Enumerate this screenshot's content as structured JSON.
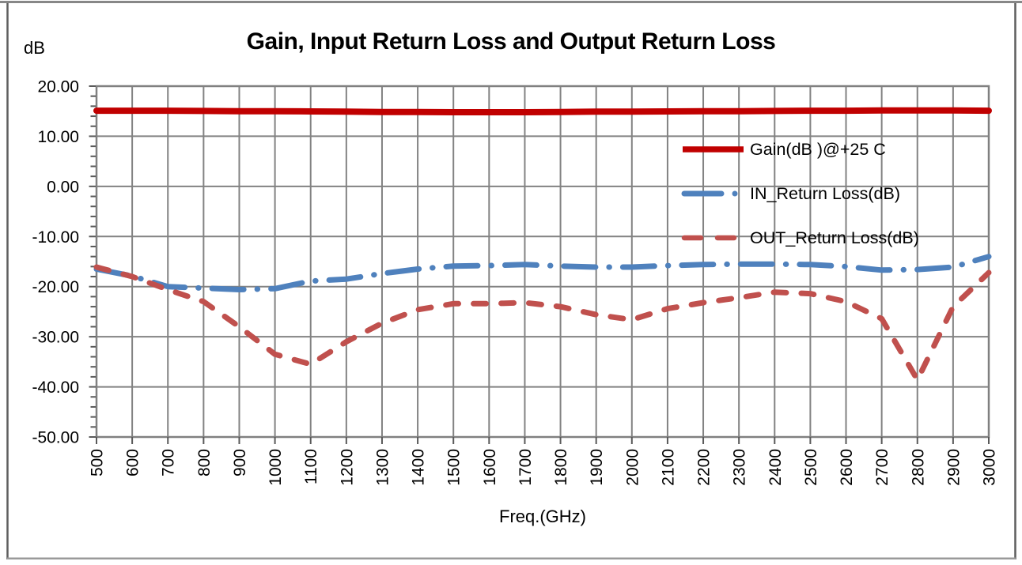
{
  "figure": {
    "title": "Gain, Input Return Loss and Output Return Loss",
    "y_unit_label": "dB",
    "x_axis_title": "Freq.(GHz)"
  },
  "colors": {
    "gain": "#c00000",
    "in_return": "#4f81bd",
    "out_return": "#c0504d",
    "grid": "#828282",
    "plot_border": "#808080",
    "minor_tick": "#595959",
    "axis_text": "#000000",
    "outer_side_border": "#5f5f5f",
    "outer_top_border": "#878787",
    "outer_bottom_border": "#9a9a9a",
    "background": "#ffffff"
  },
  "chart_data": {
    "type": "line",
    "title": "Gain, Input Return Loss and Output Return Loss",
    "xlabel": "Freq.(GHz)",
    "ylabel": "dB",
    "grid": true,
    "legend_position": "inside-right",
    "ylim": [
      -50,
      20
    ],
    "y_major_step": 10,
    "y_minor_step": 2,
    "y_ticks": [
      20,
      10,
      0,
      -10,
      -20,
      -30,
      -40,
      -50
    ],
    "y_tick_labels": [
      "20.00",
      "10.00",
      "0.00",
      "-10.00",
      "-20.00",
      "-30.00",
      "-40.00",
      "-50.00"
    ],
    "x": [
      500,
      600,
      700,
      800,
      900,
      1000,
      1100,
      1200,
      1300,
      1400,
      1500,
      1600,
      1700,
      1800,
      1900,
      2000,
      2100,
      2200,
      2300,
      2400,
      2500,
      2600,
      2700,
      2800,
      2900,
      3000
    ],
    "x_tick_labels": [
      "500",
      "600",
      "700",
      "800",
      "900",
      "1000",
      "1100",
      "1200",
      "1300",
      "1400",
      "1500",
      "1600",
      "1700",
      "1800",
      "1900",
      "2000",
      "2100",
      "2200",
      "2300",
      "2400",
      "2500",
      "2600",
      "2700",
      "2800",
      "2900",
      "3000"
    ],
    "series": [
      {
        "name": "Gain(dB )@+25 C",
        "style": "solid",
        "color_key": "gain",
        "width": 8,
        "values": [
          15.1,
          15.1,
          15.1,
          15.05,
          15.0,
          15.0,
          14.95,
          14.9,
          14.85,
          14.85,
          14.8,
          14.8,
          14.8,
          14.85,
          14.9,
          14.9,
          14.95,
          15.0,
          15.0,
          15.05,
          15.1,
          15.1,
          15.15,
          15.15,
          15.15,
          15.1
        ]
      },
      {
        "name": "IN_Return Loss(dB)",
        "style": "long-dash-dot",
        "color_key": "in_return",
        "width": 7,
        "values": [
          -16.5,
          -17.9,
          -20.0,
          -20.3,
          -20.6,
          -20.4,
          -18.9,
          -18.5,
          -17.4,
          -16.5,
          -15.9,
          -15.8,
          -15.6,
          -15.9,
          -16.1,
          -16.1,
          -15.8,
          -15.6,
          -15.5,
          -15.5,
          -15.6,
          -16.0,
          -16.7,
          -16.6,
          -16.1,
          -14.0
        ]
      },
      {
        "name": "OUT_Return Loss(dB)",
        "style": "dash",
        "color_key": "out_return",
        "width": 7,
        "values": [
          -16.1,
          -18.0,
          -20.6,
          -23.0,
          -28.0,
          -33.5,
          -35.5,
          -31.0,
          -27.3,
          -24.6,
          -23.4,
          -23.4,
          -23.2,
          -24.0,
          -25.6,
          -26.6,
          -24.4,
          -23.2,
          -22.2,
          -21.1,
          -21.4,
          -23.0,
          -26.4,
          -38.6,
          -24.0,
          -17.2
        ]
      }
    ]
  }
}
